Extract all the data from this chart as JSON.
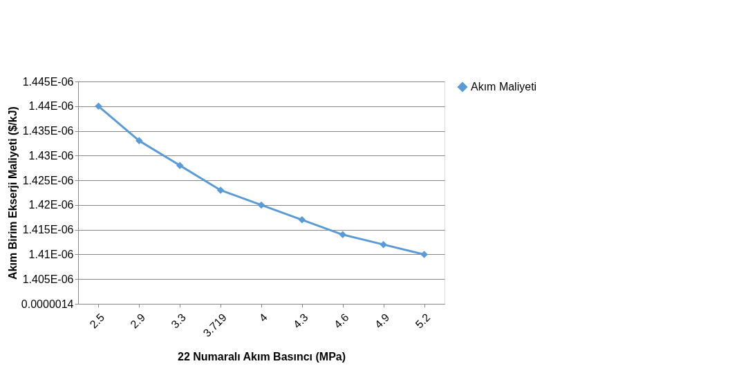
{
  "chart_data": {
    "type": "line",
    "xlabel": "22 Numaralı Akım Basıncı (MPa)",
    "ylabel": "Akım Birim Ekserji Maliyeti ($/kJ)",
    "categories": [
      "2.5",
      "2.9",
      "3.3",
      "3.719",
      "4",
      "4.3",
      "4.6",
      "4.9",
      "5.2"
    ],
    "series": [
      {
        "name": "Akım Maliyeti",
        "color": "#5b9bd5",
        "values": [
          1.44e-06,
          1.433e-06,
          1.428e-06,
          1.423e-06,
          1.42e-06,
          1.417e-06,
          1.414e-06,
          1.412e-06,
          1.41e-06
        ]
      }
    ],
    "ylim": [
      1.4e-06,
      1.445e-06
    ],
    "yticks": [
      {
        "value": 1.4e-06,
        "label": "0.0000014"
      },
      {
        "value": 1.405e-06,
        "label": "1.405E-06"
      },
      {
        "value": 1.41e-06,
        "label": "1.41E-06"
      },
      {
        "value": 1.415e-06,
        "label": "1.415E-06"
      },
      {
        "value": 1.42e-06,
        "label": "1.42E-06"
      },
      {
        "value": 1.425e-06,
        "label": "1.425E-06"
      },
      {
        "value": 1.43e-06,
        "label": "1.43E-06"
      },
      {
        "value": 1.435e-06,
        "label": "1.435E-06"
      },
      {
        "value": 1.44e-06,
        "label": "1.44E-06"
      },
      {
        "value": 1.445e-06,
        "label": "1.445E-06"
      }
    ],
    "grid": "y",
    "legend": "right",
    "marker": "diamond",
    "line_style": "solid"
  }
}
